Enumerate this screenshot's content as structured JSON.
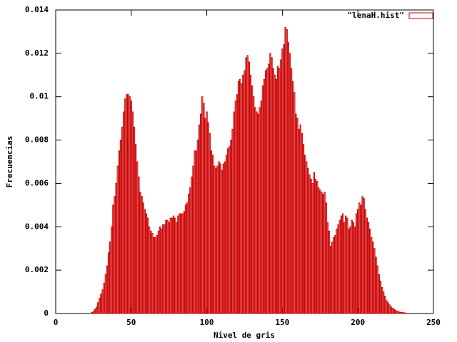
{
  "chart_data": {
    "type": "bar",
    "xlabel": "Nivel de gris",
    "ylabel": "Frecuencias",
    "series": [
      {
        "name": "\"lenaH.hist\"",
        "color": "#cc0000",
        "x": [
          24,
          25,
          26,
          27,
          28,
          29,
          30,
          31,
          32,
          33,
          34,
          35,
          36,
          37,
          38,
          39,
          40,
          41,
          42,
          43,
          44,
          45,
          46,
          47,
          48,
          49,
          50,
          51,
          52,
          53,
          54,
          55,
          56,
          57,
          58,
          59,
          60,
          61,
          62,
          63,
          64,
          65,
          66,
          67,
          68,
          69,
          70,
          71,
          72,
          73,
          74,
          75,
          76,
          77,
          78,
          79,
          80,
          81,
          82,
          83,
          84,
          85,
          86,
          87,
          88,
          89,
          90,
          91,
          92,
          93,
          94,
          95,
          96,
          97,
          98,
          99,
          100,
          101,
          102,
          103,
          104,
          105,
          106,
          107,
          108,
          109,
          110,
          111,
          112,
          113,
          114,
          115,
          116,
          117,
          118,
          119,
          120,
          121,
          122,
          123,
          124,
          125,
          126,
          127,
          128,
          129,
          130,
          131,
          132,
          133,
          134,
          135,
          136,
          137,
          138,
          139,
          140,
          141,
          142,
          143,
          144,
          145,
          146,
          147,
          148,
          149,
          150,
          151,
          152,
          153,
          154,
          155,
          156,
          157,
          158,
          159,
          160,
          161,
          162,
          163,
          164,
          165,
          166,
          167,
          168,
          169,
          170,
          171,
          172,
          173,
          174,
          175,
          176,
          177,
          178,
          179,
          180,
          181,
          182,
          183,
          184,
          185,
          186,
          187,
          188,
          189,
          190,
          191,
          192,
          193,
          194,
          195,
          196,
          197,
          198,
          199,
          200,
          201,
          202,
          203,
          204,
          205,
          206,
          207,
          208,
          209,
          210,
          211,
          212,
          213,
          214,
          215,
          216,
          217,
          218,
          219,
          220,
          221,
          222,
          223,
          224,
          225,
          226,
          227,
          228,
          229,
          230,
          231,
          232
        ],
        "values": [
          5e-05,
          0.0001,
          0.0002,
          0.0003,
          0.0005,
          0.0007,
          0.0009,
          0.0011,
          0.0014,
          0.0018,
          0.0022,
          0.0028,
          0.0033,
          0.004,
          0.005,
          0.0054,
          0.006,
          0.0068,
          0.0075,
          0.008,
          0.0086,
          0.0093,
          0.0099,
          0.0101,
          0.0101,
          0.01,
          0.0098,
          0.0093,
          0.0086,
          0.0078,
          0.007,
          0.0063,
          0.0056,
          0.0054,
          0.0051,
          0.0048,
          0.0046,
          0.0044,
          0.004,
          0.0038,
          0.0037,
          0.0035,
          0.0035,
          0.0036,
          0.0038,
          0.004,
          0.0039,
          0.0041,
          0.0041,
          0.0043,
          0.0043,
          0.0042,
          0.0044,
          0.0044,
          0.0045,
          0.0044,
          0.0042,
          0.0045,
          0.0046,
          0.0046,
          0.0046,
          0.0047,
          0.005,
          0.0051,
          0.0055,
          0.0058,
          0.0063,
          0.0068,
          0.0075,
          0.0075,
          0.008,
          0.0087,
          0.0092,
          0.01,
          0.0097,
          0.009,
          0.0093,
          0.0088,
          0.0083,
          0.0075,
          0.0073,
          0.0068,
          0.0067,
          0.0068,
          0.007,
          0.0069,
          0.0066,
          0.0069,
          0.007,
          0.0073,
          0.0076,
          0.0077,
          0.008,
          0.0085,
          0.0093,
          0.0098,
          0.0101,
          0.0107,
          0.0108,
          0.0106,
          0.011,
          0.0112,
          0.0118,
          0.0119,
          0.0116,
          0.011,
          0.0105,
          0.01,
          0.0095,
          0.0093,
          0.0092,
          0.0095,
          0.0098,
          0.0105,
          0.0108,
          0.0112,
          0.0113,
          0.0115,
          0.012,
          0.0118,
          0.0113,
          0.011,
          0.0108,
          0.0114,
          0.0113,
          0.0117,
          0.0122,
          0.0124,
          0.0132,
          0.0131,
          0.0125,
          0.012,
          0.0113,
          0.0107,
          0.0102,
          0.0092,
          0.009,
          0.0085,
          0.0087,
          0.0083,
          0.0078,
          0.0073,
          0.007,
          0.0067,
          0.0064,
          0.0062,
          0.006,
          0.0065,
          0.0062,
          0.0061,
          0.0058,
          0.0057,
          0.0056,
          0.0055,
          0.0056,
          0.0051,
          0.0042,
          0.0038,
          0.0031,
          0.0033,
          0.0035,
          0.0036,
          0.0039,
          0.0041,
          0.0043,
          0.0045,
          0.0046,
          0.0042,
          0.0045,
          0.0044,
          0.0039,
          0.004,
          0.0043,
          0.0042,
          0.004,
          0.0046,
          0.0048,
          0.0051,
          0.005,
          0.0054,
          0.0053,
          0.0048,
          0.0044,
          0.0042,
          0.0039,
          0.0035,
          0.0033,
          0.003,
          0.0026,
          0.0022,
          0.0018,
          0.0015,
          0.0012,
          0.001,
          0.0008,
          0.0006,
          0.0005,
          0.0004,
          0.0003,
          0.00025,
          0.0002,
          0.00015,
          0.0001,
          8e-05,
          6e-05,
          5e-05,
          4e-05,
          3e-05,
          2e-05
        ]
      }
    ],
    "xlim": [
      0,
      250
    ],
    "xticks": [
      0,
      50,
      100,
      150,
      200,
      250
    ],
    "ylim": [
      0,
      0.014
    ],
    "yticks": [
      0,
      0.002,
      0.004,
      0.006,
      0.008,
      0.01,
      0.012,
      0.014
    ],
    "grid": false,
    "legend": "top-right"
  }
}
